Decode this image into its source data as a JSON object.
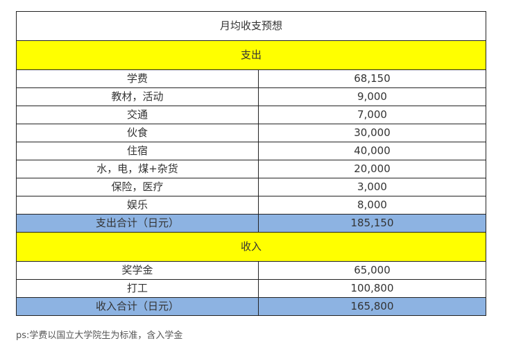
{
  "table": {
    "title": "月均收支预想",
    "expense_header": "支出",
    "expenses": [
      {
        "item": "学费",
        "amount": "68,150"
      },
      {
        "item": "教材，活动",
        "amount": "9,000"
      },
      {
        "item": "交通",
        "amount": "7,000"
      },
      {
        "item": "伙食",
        "amount": "30,000"
      },
      {
        "item": "住宿",
        "amount": "40,000"
      },
      {
        "item": "水，电，煤+杂货",
        "amount": "20,000"
      },
      {
        "item": "保险，医疗",
        "amount": "3,000"
      },
      {
        "item": "娱乐",
        "amount": "8,000"
      }
    ],
    "expense_total": {
      "label": "支出合计（日元）",
      "amount": "185,150"
    },
    "income_header": "收入",
    "incomes": [
      {
        "item": "奖学金",
        "amount": "65,000"
      },
      {
        "item": "打工",
        "amount": "100,800"
      }
    ],
    "income_total": {
      "label": "收入合计（日元）",
      "amount": "165,800"
    }
  },
  "note": "ps:学费以国立大学院生为标准，含入学金",
  "colors": {
    "section_highlight": "#ffff00",
    "total_highlight": "#8db3e2",
    "border": "#222222"
  }
}
